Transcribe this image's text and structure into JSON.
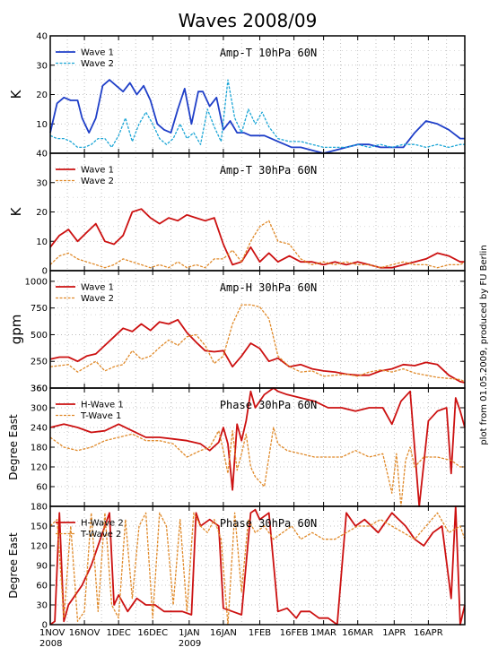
{
  "figure": {
    "title": "Waves 2008/09",
    "credit": "plot from 01.05.2009, produced by FU Berlin",
    "x_tick_labels": [
      "1NOV",
      "16NOV",
      "1DEC",
      "16DEC",
      "1JAN",
      "16JAN",
      "1FEB",
      "16FEB",
      "1MAR",
      "16MAR",
      "1APR",
      "16APR"
    ],
    "x_year_labels": [
      {
        "under": "1NOV",
        "text": "2008"
      },
      {
        "under": "1JAN",
        "text": "2009"
      }
    ],
    "colors": {
      "wave1_blue": "#1f3fc8",
      "wave2_cyan": "#1ca6d6",
      "red": "#cc1111",
      "orange": "#e08a2a",
      "grid": "#b0b0b0"
    }
  },
  "chart_data": [
    {
      "type": "line",
      "title": "Amp-T 10hPa 60N",
      "ylabel": "K",
      "xlim": [
        0,
        182
      ],
      "ylim": [
        0,
        40
      ],
      "yticks": [
        10,
        20,
        30,
        40
      ],
      "ytick_labels": [
        "10",
        "20",
        "30",
        "40"
      ],
      "bottom_label": "40",
      "series": [
        {
          "name": "Wave 1",
          "color": "#1f3fc8",
          "dash": false,
          "x": [
            0,
            3,
            6,
            9,
            12,
            14,
            17,
            20,
            23,
            26,
            29,
            32,
            35,
            38,
            41,
            44,
            47,
            50,
            53,
            56,
            59,
            62,
            65,
            67,
            70,
            73,
            76,
            79,
            82,
            85,
            88,
            91,
            94,
            97,
            100,
            103,
            106,
            110,
            115,
            120,
            125,
            130,
            135,
            140,
            145,
            150,
            155,
            160,
            165,
            170,
            175,
            180,
            182
          ],
          "y": [
            7,
            17,
            19,
            18,
            18,
            12,
            7,
            12,
            23,
            25,
            23,
            21,
            24,
            20,
            23,
            18,
            10,
            8,
            7,
            15,
            22,
            10,
            21,
            21,
            16,
            19,
            8,
            11,
            7,
            7,
            6,
            6,
            6,
            5,
            4,
            3,
            2,
            2,
            1,
            0,
            1,
            2,
            3,
            3,
            2,
            2,
            2,
            7,
            11,
            10,
            8,
            5,
            5
          ]
        },
        {
          "name": "Wave 2",
          "color": "#1ca6d6",
          "dash": true,
          "x": [
            0,
            3,
            6,
            9,
            12,
            15,
            18,
            21,
            24,
            27,
            30,
            33,
            36,
            39,
            42,
            45,
            48,
            51,
            54,
            57,
            60,
            63,
            66,
            69,
            72,
            75,
            78,
            81,
            84,
            87,
            90,
            93,
            96,
            100,
            105,
            110,
            115,
            120,
            125,
            130,
            135,
            140,
            145,
            150,
            155,
            160,
            165,
            170,
            175,
            180,
            182
          ],
          "y": [
            6,
            5,
            5,
            4,
            2,
            2,
            3,
            5,
            5,
            2,
            6,
            12,
            4,
            10,
            14,
            10,
            5,
            3,
            5,
            10,
            5,
            7,
            3,
            15,
            9,
            4,
            25,
            12,
            7,
            15,
            10,
            14,
            9,
            5,
            4,
            4,
            3,
            2,
            2,
            2,
            3,
            2,
            3,
            2,
            3,
            3,
            2,
            3,
            2,
            3,
            3
          ]
        }
      ]
    },
    {
      "type": "line",
      "title": "Amp-T 30hPa 60N",
      "ylabel": "K",
      "xlim": [
        0,
        182
      ],
      "ylim": [
        0,
        40
      ],
      "yticks": [
        0,
        10,
        20,
        30
      ],
      "ytick_labels": [
        "0",
        "10",
        "20",
        "30"
      ],
      "series": [
        {
          "name": "Wave 1",
          "color": "#cc1111",
          "dash": false,
          "x": [
            0,
            4,
            8,
            12,
            16,
            20,
            24,
            28,
            32,
            36,
            40,
            44,
            48,
            52,
            56,
            60,
            64,
            68,
            72,
            76,
            80,
            84,
            88,
            92,
            96,
            100,
            105,
            110,
            115,
            120,
            125,
            130,
            135,
            140,
            145,
            150,
            155,
            160,
            165,
            170,
            175,
            180,
            182
          ],
          "y": [
            8,
            12,
            14,
            10,
            13,
            16,
            10,
            9,
            12,
            20,
            21,
            18,
            16,
            18,
            17,
            19,
            18,
            17,
            18,
            9,
            2,
            3,
            8,
            3,
            6,
            3,
            5,
            3,
            3,
            2,
            3,
            2,
            3,
            2,
            1,
            1,
            2,
            3,
            4,
            6,
            5,
            3,
            3
          ]
        },
        {
          "name": "Wave 2",
          "color": "#e08a2a",
          "dash": true,
          "x": [
            0,
            4,
            8,
            12,
            16,
            20,
            24,
            28,
            32,
            36,
            40,
            44,
            48,
            52,
            56,
            60,
            64,
            68,
            72,
            76,
            80,
            84,
            88,
            92,
            96,
            100,
            105,
            110,
            115,
            120,
            125,
            130,
            135,
            140,
            145,
            150,
            155,
            160,
            165,
            170,
            175,
            180,
            182
          ],
          "y": [
            2,
            5,
            6,
            4,
            3,
            2,
            1,
            2,
            4,
            3,
            2,
            1,
            2,
            1,
            3,
            1,
            2,
            1,
            4,
            4,
            7,
            3,
            10,
            15,
            17,
            10,
            9,
            4,
            2,
            3,
            2,
            3,
            2,
            2,
            1,
            2,
            3,
            2,
            2,
            1,
            2,
            2,
            3
          ]
        }
      ]
    },
    {
      "type": "line",
      "title": "Amp-H 30hPa 60N",
      "ylabel": "gpm",
      "xlim": [
        0,
        182
      ],
      "ylim": [
        0,
        1100
      ],
      "yticks": [
        250,
        500,
        750,
        1000
      ],
      "ytick_labels": [
        "250",
        "500",
        "750",
        "1000"
      ],
      "bottom_label": "360",
      "series": [
        {
          "name": "Wave 1",
          "color": "#cc1111",
          "dash": false,
          "x": [
            0,
            4,
            8,
            12,
            16,
            20,
            24,
            28,
            32,
            36,
            40,
            44,
            48,
            52,
            56,
            60,
            64,
            68,
            72,
            76,
            80,
            84,
            88,
            92,
            96,
            100,
            105,
            110,
            115,
            120,
            125,
            130,
            135,
            140,
            145,
            150,
            155,
            160,
            165,
            170,
            175,
            180,
            182
          ],
          "y": [
            270,
            290,
            290,
            250,
            300,
            320,
            400,
            480,
            560,
            530,
            600,
            540,
            620,
            600,
            640,
            520,
            430,
            350,
            340,
            350,
            200,
            300,
            420,
            370,
            250,
            280,
            200,
            220,
            180,
            160,
            150,
            130,
            120,
            120,
            160,
            180,
            220,
            210,
            240,
            220,
            120,
            60,
            50
          ]
        },
        {
          "name": "Wave 2",
          "color": "#e08a2a",
          "dash": true,
          "x": [
            0,
            4,
            8,
            12,
            16,
            20,
            24,
            28,
            32,
            36,
            40,
            44,
            48,
            52,
            56,
            60,
            64,
            68,
            72,
            76,
            80,
            84,
            88,
            92,
            96,
            100,
            105,
            110,
            115,
            120,
            125,
            130,
            135,
            140,
            145,
            150,
            155,
            160,
            165,
            170,
            175,
            180,
            182
          ],
          "y": [
            200,
            210,
            220,
            150,
            200,
            250,
            160,
            200,
            220,
            350,
            270,
            300,
            380,
            450,
            400,
            480,
            500,
            400,
            230,
            300,
            600,
            780,
            780,
            760,
            650,
            300,
            200,
            150,
            160,
            110,
            120,
            130,
            110,
            150,
            170,
            150,
            180,
            140,
            120,
            100,
            90,
            80,
            60
          ]
        }
      ]
    },
    {
      "type": "line",
      "title": "Phase 30hPa 60N",
      "ylabel": "Degree East",
      "xlim": [
        0,
        182
      ],
      "ylim": [
        0,
        360
      ],
      "yticks": [
        60,
        120,
        180,
        240,
        300,
        360
      ],
      "ytick_labels": [
        "60",
        "120",
        "180",
        "240",
        "300",
        "360"
      ],
      "series": [
        {
          "name": "H-Wave 1",
          "color": "#cc1111",
          "dash": false,
          "x": [
            0,
            6,
            12,
            18,
            24,
            30,
            36,
            42,
            48,
            54,
            60,
            66,
            70,
            74,
            76,
            78,
            80,
            82,
            84,
            86,
            88,
            90,
            94,
            98,
            100,
            104,
            110,
            116,
            122,
            128,
            134,
            140,
            146,
            150,
            154,
            158,
            162,
            166,
            170,
            174,
            176,
            178,
            180,
            182
          ],
          "y": [
            240,
            250,
            240,
            225,
            230,
            250,
            230,
            210,
            210,
            205,
            200,
            190,
            170,
            195,
            240,
            190,
            50,
            250,
            200,
            260,
            350,
            300,
            340,
            360,
            350,
            340,
            330,
            320,
            300,
            300,
            290,
            300,
            300,
            250,
            320,
            350,
            0,
            260,
            290,
            300,
            100,
            330,
            290,
            240
          ]
        },
        {
          "name": "T-Wave 1",
          "color": "#e08a2a",
          "dash": true,
          "x": [
            0,
            6,
            12,
            18,
            24,
            30,
            36,
            42,
            48,
            54,
            60,
            66,
            70,
            74,
            76,
            78,
            80,
            82,
            84,
            86,
            88,
            90,
            94,
            98,
            100,
            104,
            110,
            116,
            122,
            128,
            134,
            140,
            146,
            150,
            152,
            154,
            156,
            158,
            160,
            164,
            170,
            176,
            180,
            182
          ],
          "y": [
            210,
            180,
            170,
            180,
            200,
            210,
            220,
            200,
            200,
            190,
            150,
            170,
            180,
            230,
            170,
            100,
            230,
            110,
            160,
            220,
            120,
            90,
            60,
            240,
            190,
            170,
            160,
            150,
            150,
            150,
            170,
            150,
            160,
            40,
            160,
            0,
            140,
            180,
            120,
            150,
            150,
            140,
            120,
            120
          ]
        }
      ]
    },
    {
      "type": "line",
      "title": "Phase 30hPa 60N",
      "ylabel": "Degree East",
      "xlim": [
        0,
        182
      ],
      "ylim": [
        0,
        180
      ],
      "yticks": [
        0,
        30,
        60,
        90,
        120,
        150,
        180
      ],
      "ytick_labels": [
        "0",
        "30",
        "60",
        "90",
        "120",
        "150",
        "180"
      ],
      "series": [
        {
          "name": "H-Wave 2",
          "color": "#cc1111",
          "dash": false,
          "x": [
            0,
            2,
            4,
            6,
            8,
            10,
            14,
            18,
            22,
            26,
            28,
            30,
            34,
            38,
            42,
            46,
            50,
            54,
            58,
            62,
            64,
            66,
            70,
            74,
            76,
            80,
            84,
            88,
            90,
            92,
            96,
            100,
            104,
            108,
            110,
            114,
            118,
            122,
            126,
            130,
            134,
            138,
            144,
            150,
            156,
            160,
            164,
            168,
            172,
            176,
            178,
            180,
            182
          ],
          "y": [
            0,
            5,
            170,
            5,
            30,
            40,
            60,
            90,
            130,
            170,
            30,
            45,
            20,
            40,
            30,
            30,
            20,
            20,
            20,
            15,
            170,
            150,
            160,
            150,
            25,
            20,
            15,
            170,
            175,
            160,
            170,
            20,
            25,
            10,
            20,
            20,
            10,
            10,
            0,
            170,
            150,
            160,
            140,
            170,
            150,
            130,
            120,
            140,
            150,
            40,
            180,
            0,
            30
          ]
        },
        {
          "name": "T-Wave 2",
          "color": "#e08a2a",
          "dash": true,
          "x": [
            0,
            3,
            6,
            9,
            12,
            15,
            18,
            21,
            24,
            27,
            30,
            33,
            36,
            39,
            42,
            45,
            48,
            51,
            54,
            57,
            60,
            63,
            66,
            69,
            72,
            75,
            78,
            81,
            84,
            87,
            90,
            94,
            98,
            102,
            106,
            110,
            115,
            120,
            125,
            130,
            135,
            140,
            145,
            150,
            155,
            160,
            165,
            170,
            175,
            180,
            182
          ],
          "y": [
            150,
            160,
            10,
            150,
            5,
            20,
            170,
            20,
            170,
            30,
            10,
            160,
            40,
            150,
            170,
            10,
            170,
            150,
            30,
            160,
            20,
            170,
            150,
            140,
            160,
            130,
            0,
            170,
            50,
            160,
            140,
            150,
            130,
            140,
            150,
            130,
            140,
            130,
            130,
            140,
            150,
            150,
            160,
            150,
            140,
            130,
            150,
            170,
            140,
            150,
            130
          ]
        }
      ]
    }
  ]
}
